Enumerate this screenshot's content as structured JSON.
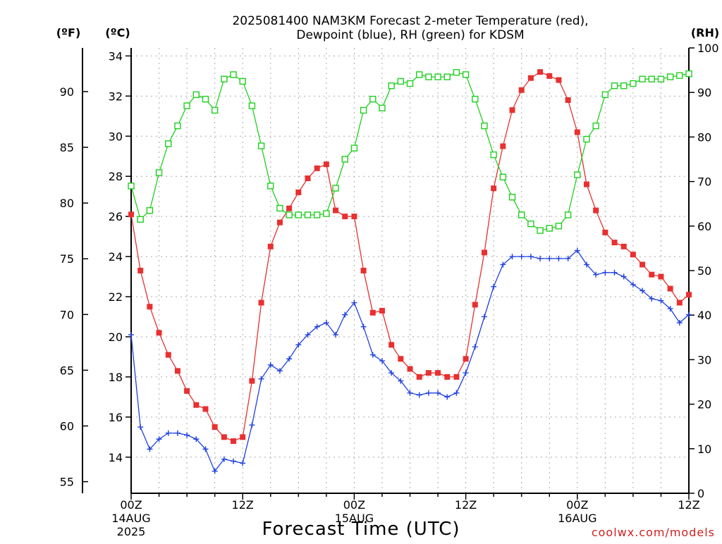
{
  "chart_data": {
    "type": "line",
    "title_line1": "2025081400 NAM3KM Forecast 2-meter Temperature (red),",
    "title_line2": "Dewpoint (blue), RH (green) for KDSM",
    "xlabel": "Forecast Time (UTC)",
    "credit": "coolwx.com/models",
    "unit_labels": {
      "fahrenheit": "(ºF)",
      "celsius": "(ºC)",
      "rh": "(RH)"
    },
    "x_unit": "forecast hour",
    "xlim": [
      0,
      60
    ],
    "celsius_ylim": [
      12.2,
      34.4
    ],
    "rh_ylim": [
      0,
      100
    ],
    "celsius_ticks": [
      14,
      16,
      18,
      20,
      22,
      24,
      26,
      28,
      30,
      32,
      34
    ],
    "fahrenheit_ticks": [
      55,
      60,
      65,
      70,
      75,
      80,
      85,
      90
    ],
    "rh_ticks": [
      0,
      10,
      20,
      30,
      40,
      50,
      60,
      70,
      80,
      90,
      100
    ],
    "x_ticks": [
      {
        "hour": 0,
        "label": "00Z",
        "date": "14AUG",
        "year": "2025"
      },
      {
        "hour": 12,
        "label": "12Z",
        "date": "",
        "year": ""
      },
      {
        "hour": 24,
        "label": "00Z",
        "date": "15AUG",
        "year": ""
      },
      {
        "hour": 36,
        "label": "12Z",
        "date": "",
        "year": ""
      },
      {
        "hour": 48,
        "label": "00Z",
        "date": "16AUG",
        "year": ""
      },
      {
        "hour": 60,
        "label": "12Z",
        "date": "",
        "year": ""
      }
    ],
    "grid": true,
    "series": [
      {
        "name": "Temperature",
        "axis": "celsius",
        "color": "#e83030",
        "marker": "filled-square",
        "x": [
          0,
          1,
          2,
          3,
          4,
          5,
          6,
          7,
          8,
          9,
          10,
          11,
          12,
          13,
          14,
          15,
          16,
          17,
          18,
          19,
          20,
          21,
          22,
          23,
          24,
          25,
          26,
          27,
          28,
          29,
          30,
          31,
          32,
          33,
          34,
          35,
          36,
          37,
          38,
          39,
          40,
          41,
          42,
          43,
          44,
          45,
          46,
          47,
          48,
          49,
          50,
          51,
          52,
          53,
          54,
          55,
          56,
          57,
          58,
          59,
          60
        ],
        "values": [
          26.1,
          23.3,
          21.5,
          20.2,
          19.1,
          18.3,
          17.3,
          16.6,
          16.4,
          15.5,
          15.0,
          14.8,
          15.0,
          17.8,
          21.7,
          24.5,
          25.7,
          26.4,
          27.2,
          27.9,
          28.4,
          28.6,
          26.3,
          26.0,
          26.0,
          23.3,
          21.2,
          21.3,
          19.6,
          18.9,
          18.4,
          18.0,
          18.2,
          18.2,
          18.0,
          18.0,
          18.9,
          21.6,
          24.2,
          27.4,
          29.5,
          31.3,
          32.3,
          32.9,
          33.2,
          33.0,
          32.8,
          31.8,
          30.2,
          27.6,
          26.3,
          25.2,
          24.7,
          24.5,
          24.1,
          23.6,
          23.1,
          23.0,
          22.4,
          21.7,
          22.1
        ]
      },
      {
        "name": "Dewpoint",
        "axis": "celsius",
        "color": "#2040e0",
        "marker": "plus",
        "x": [
          0,
          1,
          2,
          3,
          4,
          5,
          6,
          7,
          8,
          9,
          10,
          11,
          12,
          13,
          14,
          15,
          16,
          17,
          18,
          19,
          20,
          21,
          22,
          23,
          24,
          25,
          26,
          27,
          28,
          29,
          30,
          31,
          32,
          33,
          34,
          35,
          36,
          37,
          38,
          39,
          40,
          41,
          42,
          43,
          44,
          45,
          46,
          47,
          48,
          49,
          50,
          51,
          52,
          53,
          54,
          55,
          56,
          57,
          58,
          59,
          60
        ],
        "values": [
          20.1,
          15.5,
          14.4,
          14.9,
          15.2,
          15.2,
          15.1,
          14.9,
          14.4,
          13.3,
          13.9,
          13.8,
          13.7,
          15.6,
          17.9,
          18.6,
          18.3,
          18.9,
          19.6,
          20.1,
          20.5,
          20.7,
          20.1,
          21.1,
          21.7,
          20.5,
          19.1,
          18.8,
          18.2,
          17.8,
          17.2,
          17.1,
          17.2,
          17.2,
          17.0,
          17.2,
          18.2,
          19.5,
          21.0,
          22.5,
          23.6,
          24.0,
          24.0,
          24.0,
          23.9,
          23.9,
          23.9,
          23.9,
          24.3,
          23.6,
          23.1,
          23.2,
          23.2,
          23.0,
          22.6,
          22.3,
          21.9,
          21.8,
          21.4,
          20.7,
          21.1
        ]
      },
      {
        "name": "RH",
        "axis": "rh",
        "color": "#20d020",
        "marker": "open-square",
        "x": [
          0,
          1,
          2,
          3,
          4,
          5,
          6,
          7,
          8,
          9,
          10,
          11,
          12,
          13,
          14,
          15,
          16,
          17,
          18,
          19,
          20,
          21,
          22,
          23,
          24,
          25,
          26,
          27,
          28,
          29,
          30,
          31,
          32,
          33,
          34,
          35,
          36,
          37,
          38,
          39,
          40,
          41,
          42,
          43,
          44,
          45,
          46,
          47,
          48,
          49,
          50,
          51,
          52,
          53,
          54,
          55,
          56,
          57,
          58,
          59,
          60
        ],
        "values": [
          69,
          61.5,
          63.5,
          72,
          78.5,
          82.5,
          87,
          89.5,
          88.5,
          86,
          93,
          94,
          92.5,
          87,
          78,
          69,
          64,
          62.5,
          62.5,
          62.5,
          62.5,
          62.8,
          68.5,
          75,
          77.5,
          86,
          88.5,
          86.5,
          91.5,
          92.5,
          92,
          94,
          93.5,
          93.5,
          93.5,
          94.5,
          94,
          88.5,
          82.5,
          76,
          71,
          66.5,
          62.5,
          60.5,
          59,
          59.5,
          60,
          62.5,
          71.5,
          79.5,
          82.5,
          89.5,
          91.5,
          91.5,
          92,
          93,
          93,
          93,
          93.5,
          93.8,
          94.2
        ]
      }
    ]
  }
}
